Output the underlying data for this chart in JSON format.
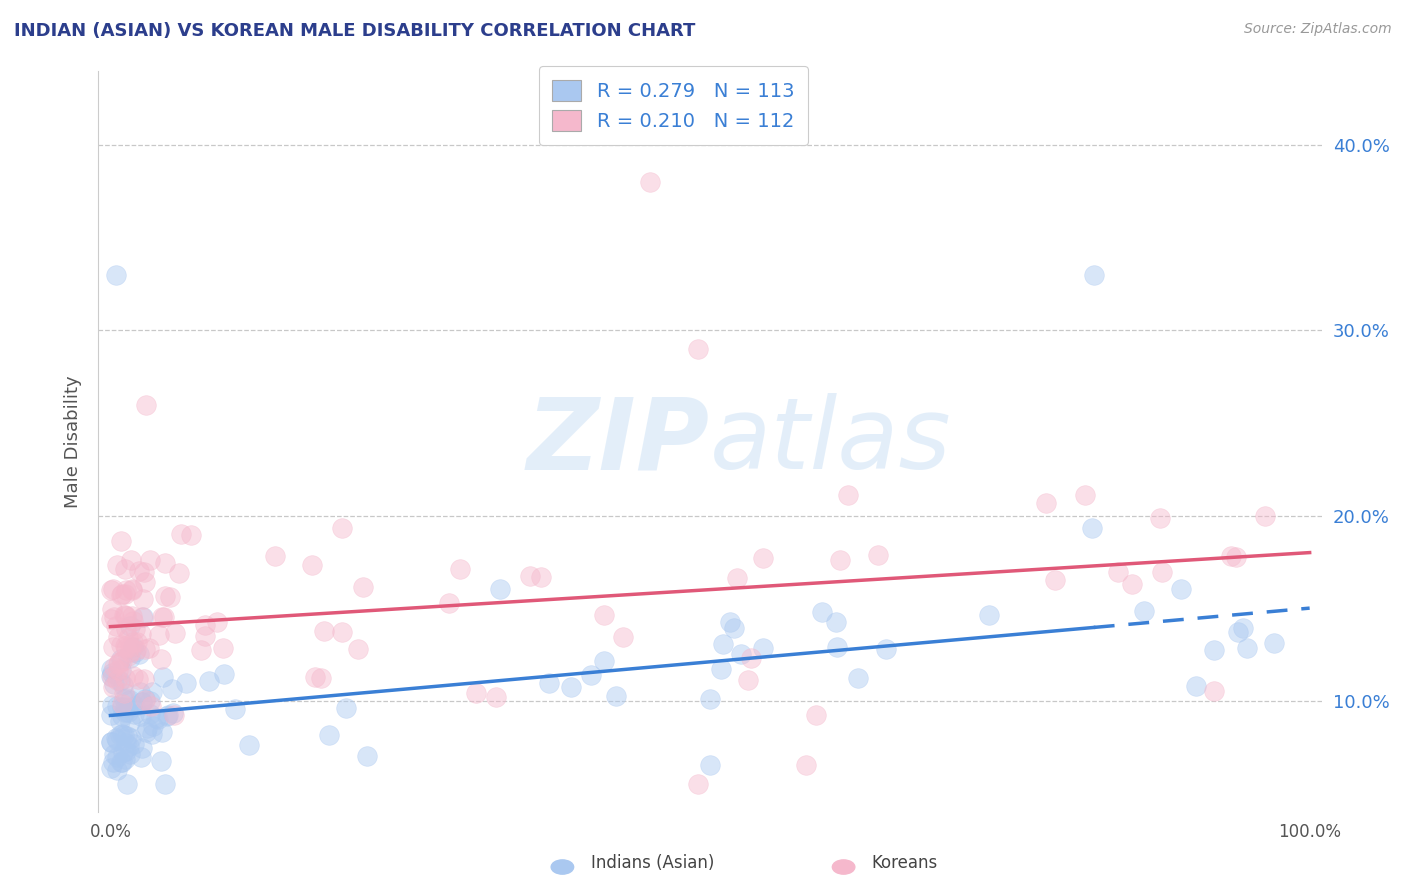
{
  "title": "INDIAN (ASIAN) VS KOREAN MALE DISABILITY CORRELATION CHART",
  "source": "Source: ZipAtlas.com",
  "ylabel": "Male Disability",
  "xlim": [
    -0.01,
    1.01
  ],
  "ylim": [
    0.04,
    0.44
  ],
  "yticks": [
    0.1,
    0.2,
    0.3,
    0.4
  ],
  "ytick_labels": [
    "10.0%",
    "20.0%",
    "30.0%",
    "40.0%"
  ],
  "xtick_labels": [
    "0.0%",
    "100.0%"
  ],
  "legend_R_indian": "0.279",
  "legend_N_indian": "113",
  "legend_R_korean": "0.210",
  "legend_N_korean": "112",
  "indian_color": "#aac8f0",
  "korean_color": "#f5b8cc",
  "indian_line_color": "#3a7fd5",
  "korean_line_color": "#e05878",
  "watermark_color": "#c8dff5",
  "background_color": "#ffffff",
  "grid_color": "#c8c8c8",
  "title_color": "#2c3e8c",
  "ytick_color": "#3a7fd5",
  "legend_label_indian": "Indians (Asian)",
  "legend_label_korean": "Koreans",
  "indian_slope": 0.058,
  "indian_intercept": 0.092,
  "korean_slope": 0.04,
  "korean_intercept": 0.14
}
